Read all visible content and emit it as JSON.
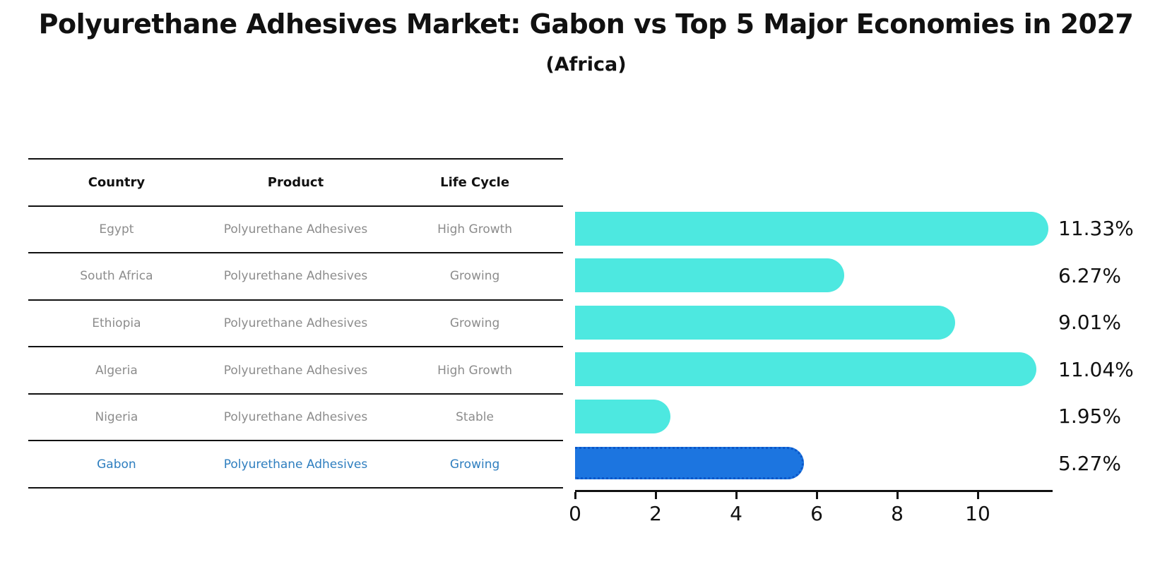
{
  "title": "Polyurethane Adhesives Market: Gabon vs Top 5 Major Economies in 2027",
  "subtitle": "(Africa)",
  "colors": {
    "bar": "#4DE8E0",
    "highlight_bar": "#1C75E0",
    "highlight_border": "#0B57C9",
    "highlight_text": "#2E7EBF",
    "row_text": "#8C8C8C",
    "axis": "#111111"
  },
  "table": {
    "headers": {
      "country": "Country",
      "product": "Product",
      "life_cycle": "Life Cycle"
    },
    "rows": [
      {
        "country": "Egypt",
        "product": "Polyurethane Adhesives",
        "life_cycle": "High Growth",
        "highlight": false
      },
      {
        "country": "South Africa",
        "product": "Polyurethane Adhesives",
        "life_cycle": "Growing",
        "highlight": false
      },
      {
        "country": "Ethiopia",
        "product": "Polyurethane Adhesives",
        "life_cycle": "Growing",
        "highlight": false
      },
      {
        "country": "Algeria",
        "product": "Polyurethane Adhesives",
        "life_cycle": "High Growth",
        "highlight": false
      },
      {
        "country": "Nigeria",
        "product": "Polyurethane Adhesives",
        "life_cycle": "Stable",
        "highlight": false
      },
      {
        "country": "Gabon",
        "product": "Polyurethane Adhesives",
        "life_cycle": "Growing",
        "highlight": true
      }
    ]
  },
  "chart_data": {
    "type": "bar",
    "orientation": "horizontal",
    "title": "Polyurethane Adhesives Market: Gabon vs Top 5 Major Economies in 2027 (Africa)",
    "categories": [
      "Egypt",
      "South Africa",
      "Ethiopia",
      "Algeria",
      "Nigeria",
      "Gabon"
    ],
    "values": [
      11.33,
      6.27,
      9.01,
      11.04,
      1.95,
      5.27
    ],
    "value_labels": [
      "11.33%",
      "6.27%",
      "9.01%",
      "11.04%",
      "1.95%",
      "5.27%"
    ],
    "highlight_index": 5,
    "xlabel": "",
    "ylabel": "",
    "xlim": [
      0,
      11.86
    ],
    "xticks": [
      0,
      2,
      4,
      6,
      8,
      10
    ],
    "grid": false,
    "legend": false
  }
}
